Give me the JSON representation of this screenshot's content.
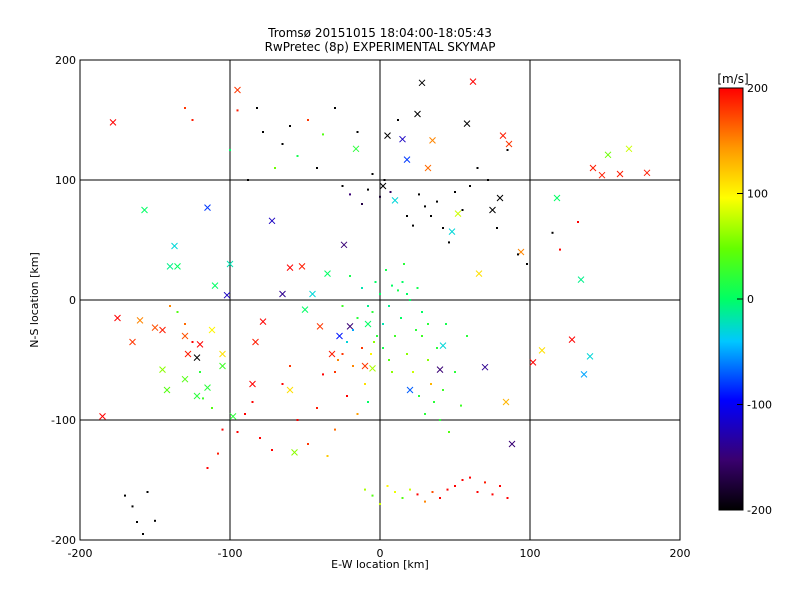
{
  "chart_data": {
    "type": "scatter",
    "title": "Tromsø 20151015 18:04:00-18:05:43",
    "subtitle": "RwPretec (8p) EXPERIMENTAL SKYMAP",
    "xlabel": "E-W location [km]",
    "ylabel": "N-S location [km]",
    "xlim": [
      -200,
      200
    ],
    "ylim": [
      -200,
      200
    ],
    "xticks": [
      "-200",
      "-100",
      "0",
      "100",
      "200"
    ],
    "yticks": [
      "-200",
      "-100",
      "0",
      "100",
      "200"
    ],
    "grid": true,
    "colorbar": {
      "label": "[m/s]",
      "range": [
        -200,
        200
      ],
      "ticks": [
        "-200",
        "-100",
        "0",
        "100",
        "200"
      ],
      "colormap": "rainbow: black → purple → blue → cyan → green → yellow → orange → red"
    },
    "series": [
      {
        "marker": "cross",
        "points": [
          [
            -178,
            148,
            200
          ],
          [
            -185,
            -97,
            200
          ],
          [
            -175,
            -15,
            200
          ],
          [
            -165,
            -35,
            180
          ],
          [
            -160,
            -17,
            150
          ],
          [
            -157,
            75,
            0
          ],
          [
            -150,
            -23,
            170
          ],
          [
            -145,
            -25,
            190
          ],
          [
            -140,
            28,
            -10
          ],
          [
            -137,
            45,
            -30
          ],
          [
            -135,
            28,
            0
          ],
          [
            -130,
            -30,
            170
          ],
          [
            -128,
            -45,
            190
          ],
          [
            -122,
            -48,
            -200
          ],
          [
            -120,
            -37,
            200
          ],
          [
            -115,
            77,
            -80
          ],
          [
            -112,
            -25,
            100
          ],
          [
            -110,
            12,
            0
          ],
          [
            -105,
            -45,
            110
          ],
          [
            -102,
            4,
            -120
          ],
          [
            -100,
            30,
            -20
          ],
          [
            -98,
            -97,
            20
          ],
          [
            -95,
            175,
            180
          ],
          [
            -85,
            -70,
            200
          ],
          [
            -83,
            -35,
            190
          ],
          [
            -78,
            -18,
            200
          ],
          [
            -72,
            66,
            -120
          ],
          [
            -65,
            5,
            -140
          ],
          [
            -60,
            27,
            200
          ],
          [
            -57,
            -127,
            60
          ],
          [
            -52,
            28,
            190
          ],
          [
            -50,
            -8,
            0
          ],
          [
            -45,
            5,
            -30
          ],
          [
            -40,
            -22,
            180
          ],
          [
            -35,
            22,
            0
          ],
          [
            -32,
            -45,
            190
          ],
          [
            -27,
            -30,
            -90
          ],
          [
            -24,
            46,
            -150
          ],
          [
            -20,
            -22,
            -150
          ],
          [
            -16,
            126,
            20
          ],
          [
            -10,
            -55,
            180
          ],
          [
            -8,
            -20,
            0
          ],
          [
            -5,
            -57,
            70
          ],
          [
            2,
            95,
            -200
          ],
          [
            5,
            137,
            -200
          ],
          [
            10,
            83,
            -30
          ],
          [
            15,
            134,
            -120
          ],
          [
            18,
            117,
            -80
          ],
          [
            20,
            -75,
            -70
          ],
          [
            25,
            155,
            -200
          ],
          [
            28,
            181,
            -200
          ],
          [
            32,
            110,
            160
          ],
          [
            35,
            133,
            150
          ],
          [
            40,
            -58,
            -150
          ],
          [
            42,
            -38,
            -30
          ],
          [
            48,
            57,
            -30
          ],
          [
            52,
            72,
            80
          ],
          [
            58,
            147,
            -200
          ],
          [
            62,
            182,
            200
          ],
          [
            66,
            22,
            110
          ],
          [
            70,
            -56,
            -140
          ],
          [
            75,
            75,
            -200
          ],
          [
            80,
            85,
            -200
          ],
          [
            82,
            137,
            190
          ],
          [
            84,
            -85,
            130
          ],
          [
            86,
            130,
            180
          ],
          [
            88,
            -120,
            -150
          ],
          [
            94,
            40,
            150
          ],
          [
            102,
            -52,
            200
          ],
          [
            108,
            -42,
            110
          ],
          [
            128,
            -33,
            200
          ],
          [
            134,
            17,
            -10
          ],
          [
            136,
            -62,
            -50
          ],
          [
            140,
            -47,
            -30
          ],
          [
            142,
            110,
            190
          ],
          [
            148,
            104,
            190
          ],
          [
            152,
            121,
            50
          ],
          [
            166,
            126,
            80
          ],
          [
            178,
            106,
            190
          ],
          [
            160,
            105,
            190
          ],
          [
            118,
            85,
            0
          ],
          [
            -60,
            -75,
            110
          ],
          [
            -130,
            -66,
            40
          ],
          [
            -122,
            -80,
            20
          ],
          [
            -115,
            -73,
            20
          ],
          [
            -105,
            -55,
            30
          ],
          [
            -145,
            -58,
            60
          ],
          [
            -142,
            -75,
            40
          ]
        ]
      },
      {
        "marker": "dot",
        "points": [
          [
            -170,
            -163,
            -200
          ],
          [
            -165,
            -172,
            -200
          ],
          [
            -162,
            -185,
            -200
          ],
          [
            -155,
            -160,
            -200
          ],
          [
            -158,
            -195,
            -200
          ],
          [
            -150,
            -184,
            -200
          ],
          [
            -130,
            160,
            180
          ],
          [
            -125,
            150,
            190
          ],
          [
            -115,
            -140,
            200
          ],
          [
            -108,
            -128,
            190
          ],
          [
            -100,
            125,
            0
          ],
          [
            -95,
            158,
            190
          ],
          [
            -88,
            100,
            -200
          ],
          [
            -82,
            160,
            -200
          ],
          [
            -78,
            140,
            -200
          ],
          [
            -70,
            110,
            50
          ],
          [
            -65,
            130,
            -200
          ],
          [
            -60,
            145,
            -200
          ],
          [
            -55,
            120,
            10
          ],
          [
            -48,
            150,
            180
          ],
          [
            -42,
            110,
            -200
          ],
          [
            -38,
            138,
            40
          ],
          [
            -30,
            160,
            -200
          ],
          [
            -25,
            95,
            -200
          ],
          [
            -20,
            88,
            -150
          ],
          [
            -15,
            140,
            -200
          ],
          [
            -12,
            80,
            -170
          ],
          [
            -8,
            92,
            -200
          ],
          [
            -5,
            105,
            -200
          ],
          [
            0,
            86,
            -180
          ],
          [
            3,
            100,
            -200
          ],
          [
            7,
            90,
            -160
          ],
          [
            12,
            150,
            -200
          ],
          [
            18,
            70,
            -200
          ],
          [
            22,
            62,
            -200
          ],
          [
            26,
            88,
            -200
          ],
          [
            30,
            78,
            -200
          ],
          [
            34,
            70,
            -200
          ],
          [
            38,
            82,
            -200
          ],
          [
            42,
            60,
            -200
          ],
          [
            46,
            48,
            -200
          ],
          [
            50,
            90,
            -200
          ],
          [
            55,
            75,
            -200
          ],
          [
            60,
            95,
            -200
          ],
          [
            65,
            110,
            -200
          ],
          [
            72,
            100,
            -200
          ],
          [
            78,
            60,
            -200
          ],
          [
            85,
            125,
            -200
          ],
          [
            92,
            38,
            -200
          ],
          [
            98,
            30,
            -200
          ],
          [
            115,
            56,
            -200
          ],
          [
            120,
            42,
            200
          ],
          [
            132,
            65,
            200
          ],
          [
            -140,
            -5,
            150
          ],
          [
            -135,
            -10,
            40
          ],
          [
            -130,
            -20,
            160
          ],
          [
            -125,
            -35,
            200
          ],
          [
            -120,
            -60,
            20
          ],
          [
            -118,
            -82,
            30
          ],
          [
            -112,
            -90,
            40
          ],
          [
            -105,
            -108,
            200
          ],
          [
            -95,
            -110,
            200
          ],
          [
            -90,
            -95,
            200
          ],
          [
            -85,
            -85,
            200
          ],
          [
            -80,
            -115,
            200
          ],
          [
            -72,
            -125,
            200
          ],
          [
            -65,
            -70,
            200
          ],
          [
            -60,
            -55,
            180
          ],
          [
            -55,
            -100,
            200
          ],
          [
            -48,
            -120,
            180
          ],
          [
            -42,
            -90,
            190
          ],
          [
            -38,
            -62,
            200
          ],
          [
            -35,
            -130,
            120
          ],
          [
            -30,
            -108,
            160
          ],
          [
            -25,
            -45,
            180
          ],
          [
            -22,
            -80,
            200
          ],
          [
            -18,
            -55,
            150
          ],
          [
            -15,
            -95,
            140
          ],
          [
            -12,
            -40,
            180
          ],
          [
            -10,
            -70,
            110
          ],
          [
            -8,
            -85,
            0
          ],
          [
            -5,
            -10,
            20
          ],
          [
            -3,
            15,
            0
          ],
          [
            0,
            5,
            0
          ],
          [
            2,
            -20,
            -20
          ],
          [
            4,
            25,
            10
          ],
          [
            6,
            -5,
            -10
          ],
          [
            8,
            12,
            0
          ],
          [
            10,
            -30,
            30
          ],
          [
            12,
            8,
            10
          ],
          [
            14,
            -15,
            0
          ],
          [
            16,
            30,
            20
          ],
          [
            18,
            -45,
            60
          ],
          [
            20,
            0,
            0
          ],
          [
            22,
            -60,
            80
          ],
          [
            24,
            -25,
            20
          ],
          [
            26,
            -80,
            20
          ],
          [
            28,
            -10,
            0
          ],
          [
            30,
            -95,
            20
          ],
          [
            32,
            -50,
            60
          ],
          [
            34,
            -70,
            130
          ],
          [
            36,
            -85,
            20
          ],
          [
            38,
            -40,
            20
          ],
          [
            40,
            -100,
            20
          ],
          [
            42,
            -75,
            30
          ],
          [
            44,
            -20,
            10
          ],
          [
            46,
            -110,
            40
          ],
          [
            50,
            -60,
            20
          ],
          [
            54,
            -88,
            30
          ],
          [
            58,
            -30,
            20
          ],
          [
            -10,
            -158,
            70
          ],
          [
            -5,
            -163,
            40
          ],
          [
            0,
            -170,
            80
          ],
          [
            5,
            -155,
            100
          ],
          [
            10,
            -160,
            90
          ],
          [
            15,
            -165,
            40
          ],
          [
            20,
            -158,
            80
          ],
          [
            25,
            -162,
            200
          ],
          [
            30,
            -168,
            150
          ],
          [
            35,
            -160,
            170
          ],
          [
            40,
            -165,
            200
          ],
          [
            45,
            -158,
            200
          ],
          [
            50,
            -155,
            200
          ],
          [
            55,
            -150,
            200
          ],
          [
            60,
            -148,
            200
          ],
          [
            65,
            -160,
            200
          ],
          [
            70,
            -152,
            190
          ],
          [
            75,
            -162,
            200
          ],
          [
            80,
            -155,
            200
          ],
          [
            85,
            -165,
            200
          ],
          [
            -2,
            -30,
            20
          ],
          [
            2,
            -40,
            10
          ],
          [
            6,
            -50,
            40
          ],
          [
            -4,
            -35,
            60
          ],
          [
            -6,
            -45,
            100
          ],
          [
            8,
            -60,
            60
          ],
          [
            -8,
            -5,
            -10
          ],
          [
            -12,
            10,
            -20
          ],
          [
            -15,
            -15,
            20
          ],
          [
            15,
            15,
            0
          ],
          [
            18,
            5,
            0
          ],
          [
            -20,
            20,
            10
          ],
          [
            -25,
            -5,
            30
          ],
          [
            25,
            10,
            10
          ],
          [
            -18,
            -25,
            -50
          ],
          [
            -22,
            -35,
            -30
          ],
          [
            28,
            -30,
            30
          ],
          [
            32,
            -20,
            20
          ],
          [
            -28,
            -50,
            150
          ],
          [
            -30,
            -60,
            180
          ]
        ]
      }
    ]
  }
}
